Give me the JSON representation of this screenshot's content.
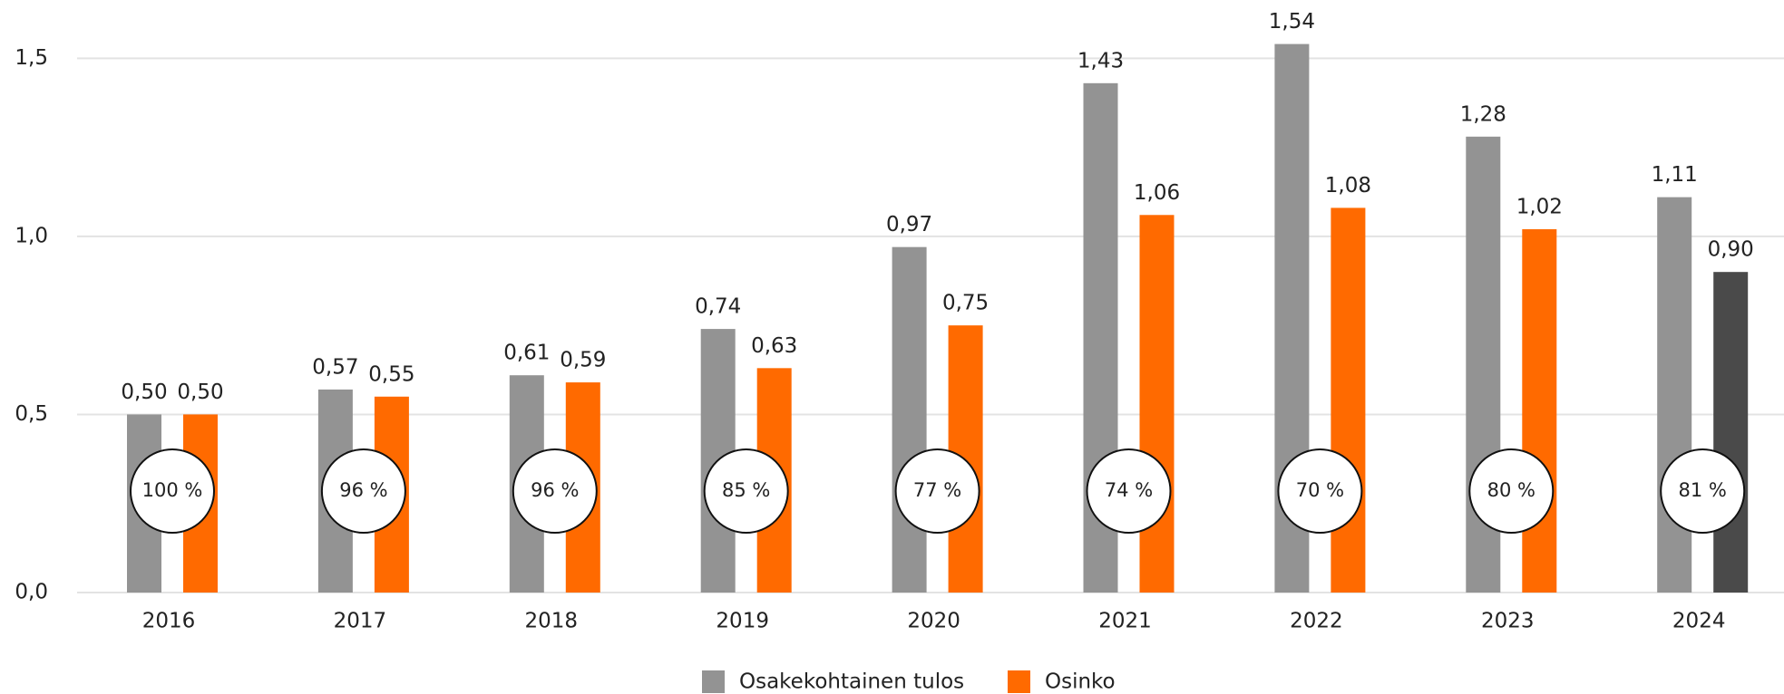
{
  "chart_data": {
    "type": "bar",
    "categories": [
      "2016",
      "2017",
      "2018",
      "2019",
      "2020",
      "2021",
      "2022",
      "2023",
      "2024"
    ],
    "series": [
      {
        "name": "Osakekohtainen tulos",
        "color": "#939393",
        "values": [
          0.5,
          0.57,
          0.61,
          0.74,
          0.97,
          1.43,
          1.54,
          1.28,
          1.11
        ],
        "value_labels": [
          "0,50",
          "0,57",
          "0,61",
          "0,74",
          "0,97",
          "1,43",
          "1,54",
          "1,28",
          "1,11"
        ]
      },
      {
        "name": "Osinko",
        "color": "#ff6a00",
        "point_colors": [
          "#ff6a00",
          "#ff6a00",
          "#ff6a00",
          "#ff6a00",
          "#ff6a00",
          "#ff6a00",
          "#ff6a00",
          "#ff6a00",
          "#4a4a4a"
        ],
        "values": [
          0.5,
          0.55,
          0.59,
          0.63,
          0.75,
          1.06,
          1.08,
          1.02,
          0.9
        ],
        "value_labels": [
          "0,50",
          "0,55",
          "0,59",
          "0,63",
          "0,75",
          "1,06",
          "1,08",
          "1,02",
          "0,90"
        ]
      }
    ],
    "payout_ratio": {
      "values": [
        100,
        96,
        96,
        85,
        77,
        74,
        70,
        80,
        81
      ],
      "value_labels": [
        "100 %",
        "96 %",
        "96 %",
        "85 %",
        "77 %",
        "74 %",
        "70 %",
        "80 %",
        "81 %"
      ]
    },
    "ylim": [
      0,
      1.6
    ],
    "yticks": [
      {
        "value": 0,
        "label": "0,0"
      },
      {
        "value": 0.5,
        "label": "0,5"
      },
      {
        "value": 1.0,
        "label": "1,0"
      },
      {
        "value": 1.5,
        "label": "1,5"
      }
    ],
    "grid": true,
    "legend": "bottom"
  }
}
